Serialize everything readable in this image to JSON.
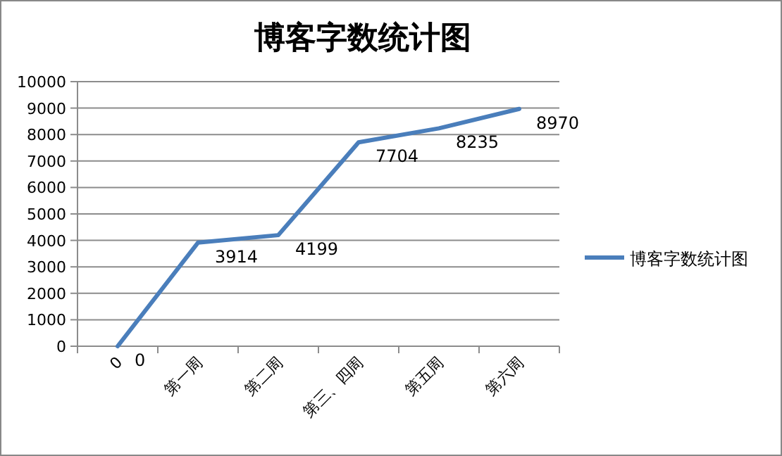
{
  "chart_data": {
    "type": "line",
    "title": "博客字数统计图",
    "categories": [
      "0",
      "第一周",
      "第二周",
      "第三、四周",
      "第五周",
      "第六周"
    ],
    "series": [
      {
        "name": "博客字数统计图",
        "color": "#4a7ebb",
        "values": [
          0,
          3914,
          4199,
          7704,
          8235,
          8970
        ]
      }
    ],
    "ylim": [
      0,
      10000
    ],
    "yticks": [
      0,
      1000,
      2000,
      3000,
      4000,
      5000,
      6000,
      7000,
      8000,
      9000,
      10000
    ],
    "grid": "y",
    "legend": "right",
    "data_labels": true,
    "marker": "none",
    "line_style": "solid"
  }
}
